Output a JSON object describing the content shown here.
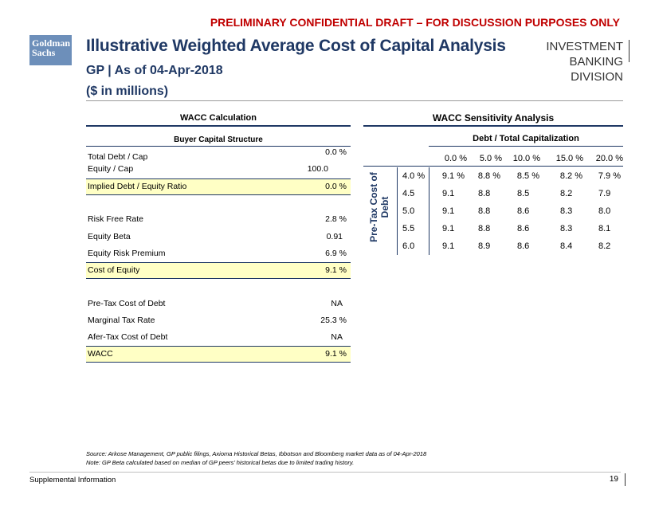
{
  "banner": "PRELIMINARY CONFIDENTIAL DRAFT – FOR DISCUSSION PURPOSES ONLY",
  "logo": {
    "line1": "Goldman",
    "line2": "Sachs"
  },
  "title": "Illustrative Weighted Average Cost of Capital Analysis",
  "subtitle": "GP | As of 04-Apr-2018",
  "units": "($ in millions)",
  "division": {
    "line1": "INVESTMENT BANKING",
    "line2": "DIVISION"
  },
  "wacc_calc": {
    "title": "WACC Calculation",
    "subtitle": "Buyer Capital Structure",
    "rows": [
      {
        "label": "Total Debt / Cap",
        "value": "0.0 %"
      },
      {
        "label": "Equity / Cap",
        "value": "100.0"
      },
      {
        "label": "Implied Debt / Equity Ratio",
        "value": "0.0 %"
      },
      {
        "label": "Risk Free Rate",
        "value": "2.8 %"
      },
      {
        "label": "Equity Beta",
        "value": "0.91"
      },
      {
        "label": "Equity Risk Premium",
        "value": "6.9 %"
      },
      {
        "label": "Cost of Equity",
        "value": "9.1 %"
      },
      {
        "label": "Pre-Tax Cost of Debt",
        "value": "NA"
      },
      {
        "label": "Marginal Tax Rate",
        "value": "25.3 %"
      },
      {
        "label": "Afer-Tax Cost of Debt",
        "value": "NA"
      },
      {
        "label": "WACC",
        "value": "9.1 %"
      }
    ]
  },
  "sensitivity": {
    "title": "WACC Sensitivity Analysis",
    "col_title": "Debt / Total Capitalization",
    "row_title": "Pre-Tax Cost of Debt",
    "columns": [
      "0.0 %",
      "5.0 %",
      "10.0 %",
      "15.0 %",
      "20.0 %"
    ],
    "rows": [
      {
        "label": "4.0 %",
        "values": [
          "9.1 %",
          "8.8 %",
          "8.5 %",
          "8.2 %",
          "7.9 %"
        ]
      },
      {
        "label": "4.5",
        "values": [
          "9.1",
          "8.8",
          "8.5",
          "8.2",
          "7.9"
        ]
      },
      {
        "label": "5.0",
        "values": [
          "9.1",
          "8.8",
          "8.6",
          "8.3",
          "8.0"
        ]
      },
      {
        "label": "5.5",
        "values": [
          "9.1",
          "8.8",
          "8.6",
          "8.3",
          "8.1"
        ]
      },
      {
        "label": "6.0",
        "values": [
          "9.1",
          "8.9",
          "8.6",
          "8.4",
          "8.2"
        ]
      }
    ]
  },
  "source": "Source: Arkose Management, GP public filings, Axioma Historical Betas, Ibbotson and Bloomberg market data as of 04-Apr-2018",
  "note": "Note: GP Beta calculated based on median of GP peers’ historical betas due to limited trading history.",
  "footer": "Supplemental Information",
  "page_number": "19",
  "colors": {
    "navy": "#1f3864",
    "banner_red": "#c00000",
    "highlight": "#ffffc5"
  }
}
